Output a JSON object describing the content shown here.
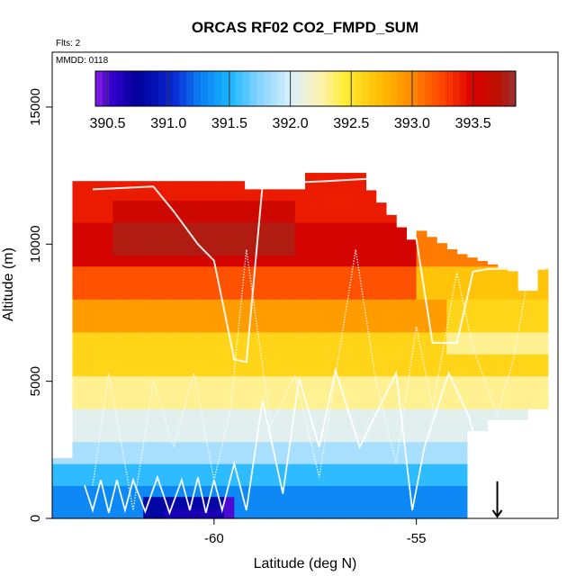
{
  "chart_data": {
    "type": "heatmap",
    "title": "ORCAS RF02 CO2_FMPD_SUM",
    "xlabel": "Latitude (deg N)",
    "ylabel": "Altitude (m)",
    "annotations": [
      "Flts: 2",
      "MMDD: 0118"
    ],
    "xlim": [
      -64,
      -51.5
    ],
    "ylim": [
      0,
      17000
    ],
    "x_ticks": [
      -60,
      -55
    ],
    "x_tick_labels": [
      "-60",
      "-55"
    ],
    "y_ticks": [
      0,
      5000,
      10000,
      15000
    ],
    "y_tick_labels": [
      "0",
      "5000",
      "10000",
      "15000"
    ],
    "colorbar": {
      "min": 390.4,
      "max": 393.85,
      "ticks": [
        390.5,
        391.0,
        391.5,
        392.0,
        392.5,
        393.0,
        393.5
      ],
      "tick_labels": [
        "390.5",
        "391.0",
        "391.5",
        "392.0",
        "392.5",
        "393.0",
        "393.5"
      ],
      "stops": [
        {
          "v": 390.4,
          "c": "#8c1de6"
        },
        {
          "v": 390.55,
          "c": "#2e00cc"
        },
        {
          "v": 390.75,
          "c": "#000099"
        },
        {
          "v": 391.05,
          "c": "#0a2ad6"
        },
        {
          "v": 391.25,
          "c": "#0a7df2"
        },
        {
          "v": 391.5,
          "c": "#19b5ff"
        },
        {
          "v": 391.75,
          "c": "#88d4ff"
        },
        {
          "v": 392.0,
          "c": "#d9f0ff"
        },
        {
          "v": 392.25,
          "c": "#fff2b0"
        },
        {
          "v": 392.45,
          "c": "#ffee33"
        },
        {
          "v": 392.75,
          "c": "#ffbb00"
        },
        {
          "v": 393.0,
          "c": "#ff8800"
        },
        {
          "v": 393.25,
          "c": "#ff4400"
        },
        {
          "v": 393.5,
          "c": "#dd0000"
        },
        {
          "v": 393.7,
          "c": "#bb1100"
        },
        {
          "v": 393.85,
          "c": "#993333"
        }
      ]
    },
    "flight_track_color": "#ffffff",
    "marker": {
      "lat": -53.0,
      "alt": 650,
      "description": "arrow pointing down"
    }
  }
}
